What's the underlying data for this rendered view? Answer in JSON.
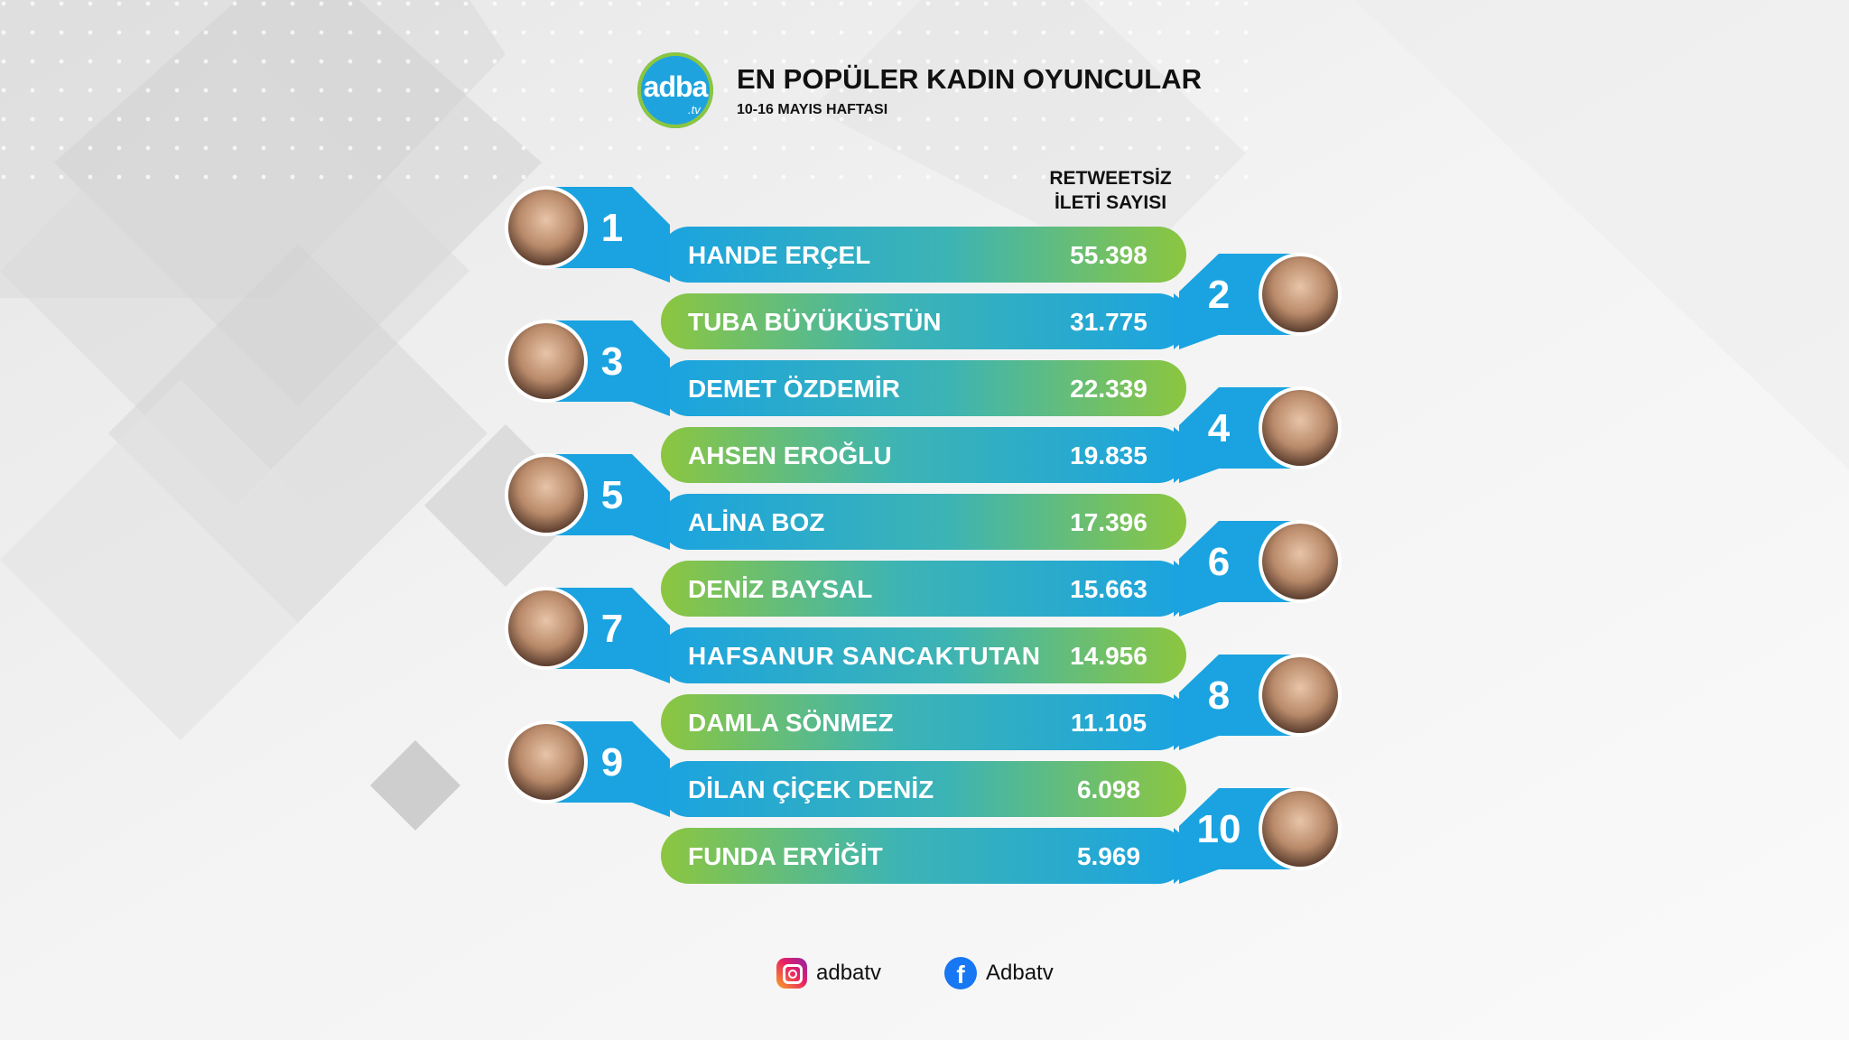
{
  "header": {
    "logo_text": "adba",
    "logo_sub": ".tv",
    "title": "EN POPÜLER KADIN OYUNCULAR",
    "subtitle": "10-16 MAYIS HAFTASI"
  },
  "column_header": [
    "RETWEETSİZ",
    "İLETİ SAYISI"
  ],
  "chart_data": {
    "type": "bar",
    "title": "EN POPÜLER KADIN OYUNCULAR",
    "subtitle": "10-16 MAYIS HAFTASI",
    "ylabel": "RETWEETSİZ İLETİ SAYISI",
    "categories": [
      "HANDE ERÇEL",
      "TUBA BÜYÜKÜSTÜN",
      "DEMET ÖZDEMİR",
      "AHSEN EROĞLU",
      "ALİNA BOZ",
      "DENİZ BAYSAL",
      "HAFSANUR SANCAKTUTAN",
      "DAMLA SÖNMEZ",
      "DİLAN ÇİÇEK DENİZ",
      "FUNDA ERYİĞİT"
    ],
    "ranks": [
      "1",
      "2",
      "3",
      "4",
      "5",
      "6",
      "7",
      "8",
      "9",
      "10"
    ],
    "values": [
      55398,
      31775,
      22339,
      19835,
      17396,
      15663,
      14956,
      11105,
      6098,
      5969
    ],
    "value_labels": [
      "55.398",
      "31.775",
      "22.339",
      "19.835",
      "17.396",
      "15.663",
      "14.956",
      "11.105",
      "6.098",
      "5.969"
    ],
    "colors": {
      "blue": "#1aa3e0",
      "green": "#8cc63f",
      "avatar_ring": "#1aa3e0"
    }
  },
  "footer": {
    "instagram": {
      "icon": "instagram-icon",
      "label": "adbatv"
    },
    "facebook": {
      "icon": "facebook-icon",
      "label": "Adbatv"
    }
  }
}
